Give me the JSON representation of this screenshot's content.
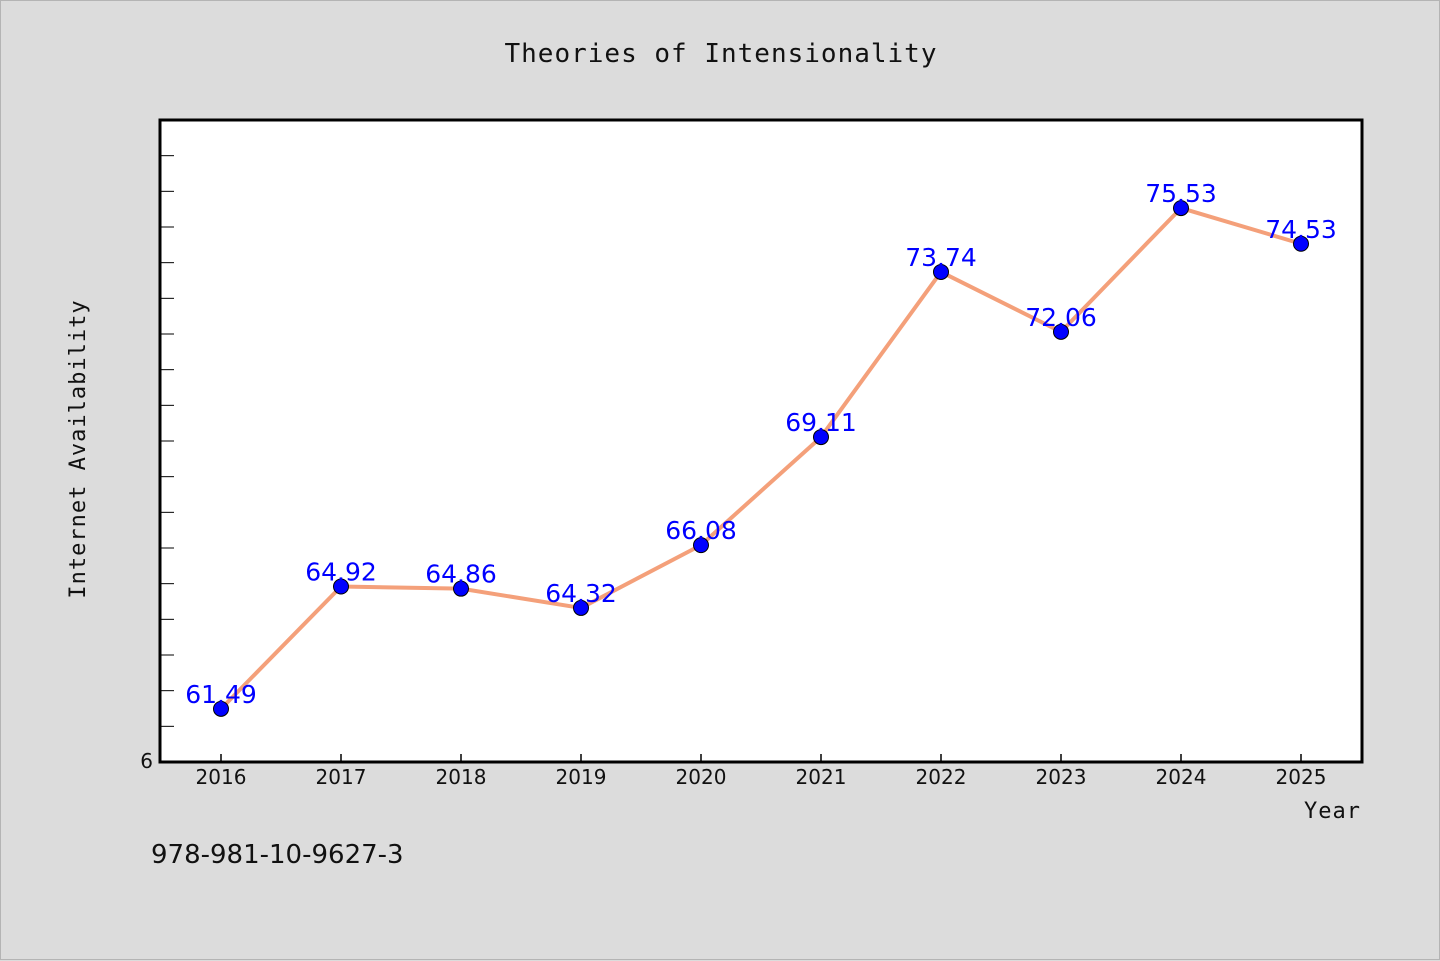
{
  "chart_data": {
    "type": "line",
    "title": "Theories of Intensionality",
    "xlabel": "Year",
    "ylabel": "Internet Availability",
    "categories": [
      "2016",
      "2017",
      "2018",
      "2019",
      "2020",
      "2021",
      "2022",
      "2023",
      "2024",
      "2025"
    ],
    "series": [
      {
        "values": [
          61.49,
          64.92,
          64.86,
          64.32,
          66.08,
          69.11,
          73.74,
          72.06,
          75.53,
          74.53
        ],
        "line_color": "#f4a07a",
        "marker_color": "#0000ff"
      }
    ],
    "data_labels": [
      "61.49",
      "64.92",
      "64.86",
      "64.32",
      "66.08",
      "69.11",
      "73.74",
      "72.06",
      "75.53",
      "74.53"
    ],
    "ylim": [
      60,
      78
    ],
    "y_visible_tick_label": "6",
    "grid": false,
    "legend": "none"
  },
  "footer": {
    "isbn": "978-981-10-9627-3"
  }
}
